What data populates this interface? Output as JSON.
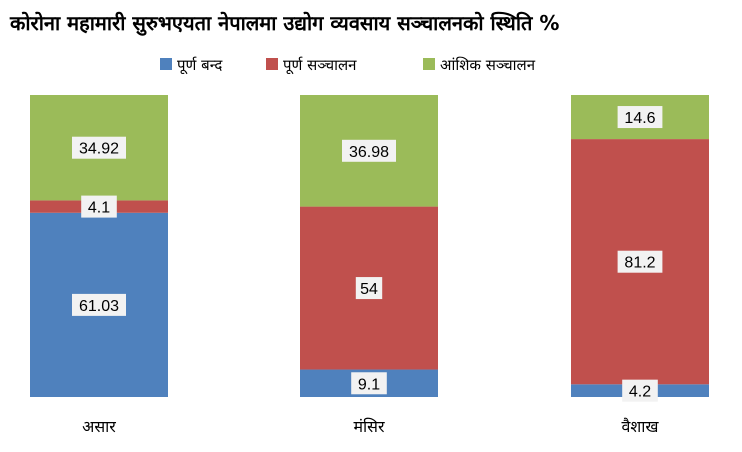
{
  "chart_data": {
    "type": "bar",
    "stacked": true,
    "normalized": true,
    "title": "कोरोना महामारी सुरुभएयता नेपालमा उद्योग व्यवसाय सञ्चालनको स्थिति %",
    "legend_position": "top",
    "categories": [
      "असार",
      "मंसिर",
      "वैशाख"
    ],
    "series": [
      {
        "name": "पूर्ण बन्द",
        "color": "#4F81BD",
        "values": [
          61.03,
          9.1,
          4.2
        ]
      },
      {
        "name": "पूर्ण सञ्चालन",
        "color": "#C0504D",
        "values": [
          4.1,
          54,
          81.2
        ]
      },
      {
        "name": "आंशिक सञ्चालन",
        "color": "#9BBB59",
        "values": [
          34.92,
          36.98,
          14.6
        ]
      }
    ],
    "ylim": [
      0,
      100
    ],
    "grid": false
  }
}
